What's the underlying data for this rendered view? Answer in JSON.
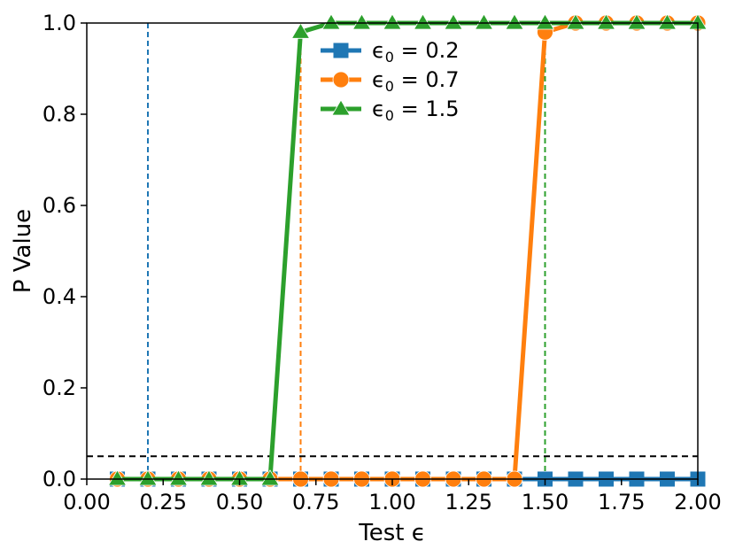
{
  "chart_data": {
    "type": "line",
    "title": "",
    "xlabel": "Test ϵ",
    "ylabel": "P Value",
    "xlim": [
      0.0,
      2.0
    ],
    "ylim": [
      0.0,
      1.0
    ],
    "grid": false,
    "legend_position": "top-center",
    "x_ticks": [
      "0.00",
      "0.25",
      "0.50",
      "0.75",
      "1.00",
      "1.25",
      "1.50",
      "1.75",
      "2.00"
    ],
    "y_ticks": [
      "0.0",
      "0.2",
      "0.4",
      "0.6",
      "0.8",
      "1.0"
    ],
    "x": [
      0.1,
      0.2,
      0.3,
      0.4,
      0.5,
      0.6,
      0.7,
      0.8,
      0.9,
      1.0,
      1.1,
      1.2,
      1.3,
      1.4,
      1.5,
      1.6,
      1.7,
      1.8,
      1.9,
      2.0
    ],
    "series": [
      {
        "name": "ϵ0 = 0.2",
        "legend_main": "ϵ",
        "legend_sub": "0",
        "legend_rest": " = 0.2",
        "color": "#1f77b4",
        "marker": "square",
        "values": [
          0,
          0,
          0,
          0,
          0,
          0,
          0,
          0,
          0,
          0,
          0,
          0,
          0,
          0,
          0,
          0,
          0,
          0,
          0,
          0
        ],
        "reference_x": 0.2
      },
      {
        "name": "ϵ0 = 0.7",
        "legend_main": "ϵ",
        "legend_sub": "0",
        "legend_rest": " = 0.7",
        "color": "#ff7f0e",
        "marker": "circle",
        "values": [
          0,
          0,
          0,
          0,
          0,
          0,
          0,
          0,
          0,
          0,
          0,
          0,
          0,
          0,
          0.98,
          1.0,
          1.0,
          1.0,
          1.0,
          1.0
        ],
        "reference_x": 0.7
      },
      {
        "name": "ϵ0 = 1.5",
        "legend_main": "ϵ",
        "legend_sub": "0",
        "legend_rest": " = 1.5",
        "color": "#2ca02c",
        "marker": "triangle",
        "values": [
          0,
          0,
          0,
          0,
          0,
          0,
          0.98,
          1.0,
          1.0,
          1.0,
          1.0,
          1.0,
          1.0,
          1.0,
          1.0,
          1.0,
          1.0,
          1.0,
          1.0,
          1.0
        ],
        "reference_x": 1.5
      }
    ],
    "threshold_y": 0.05,
    "threshold_color": "#000000"
  }
}
